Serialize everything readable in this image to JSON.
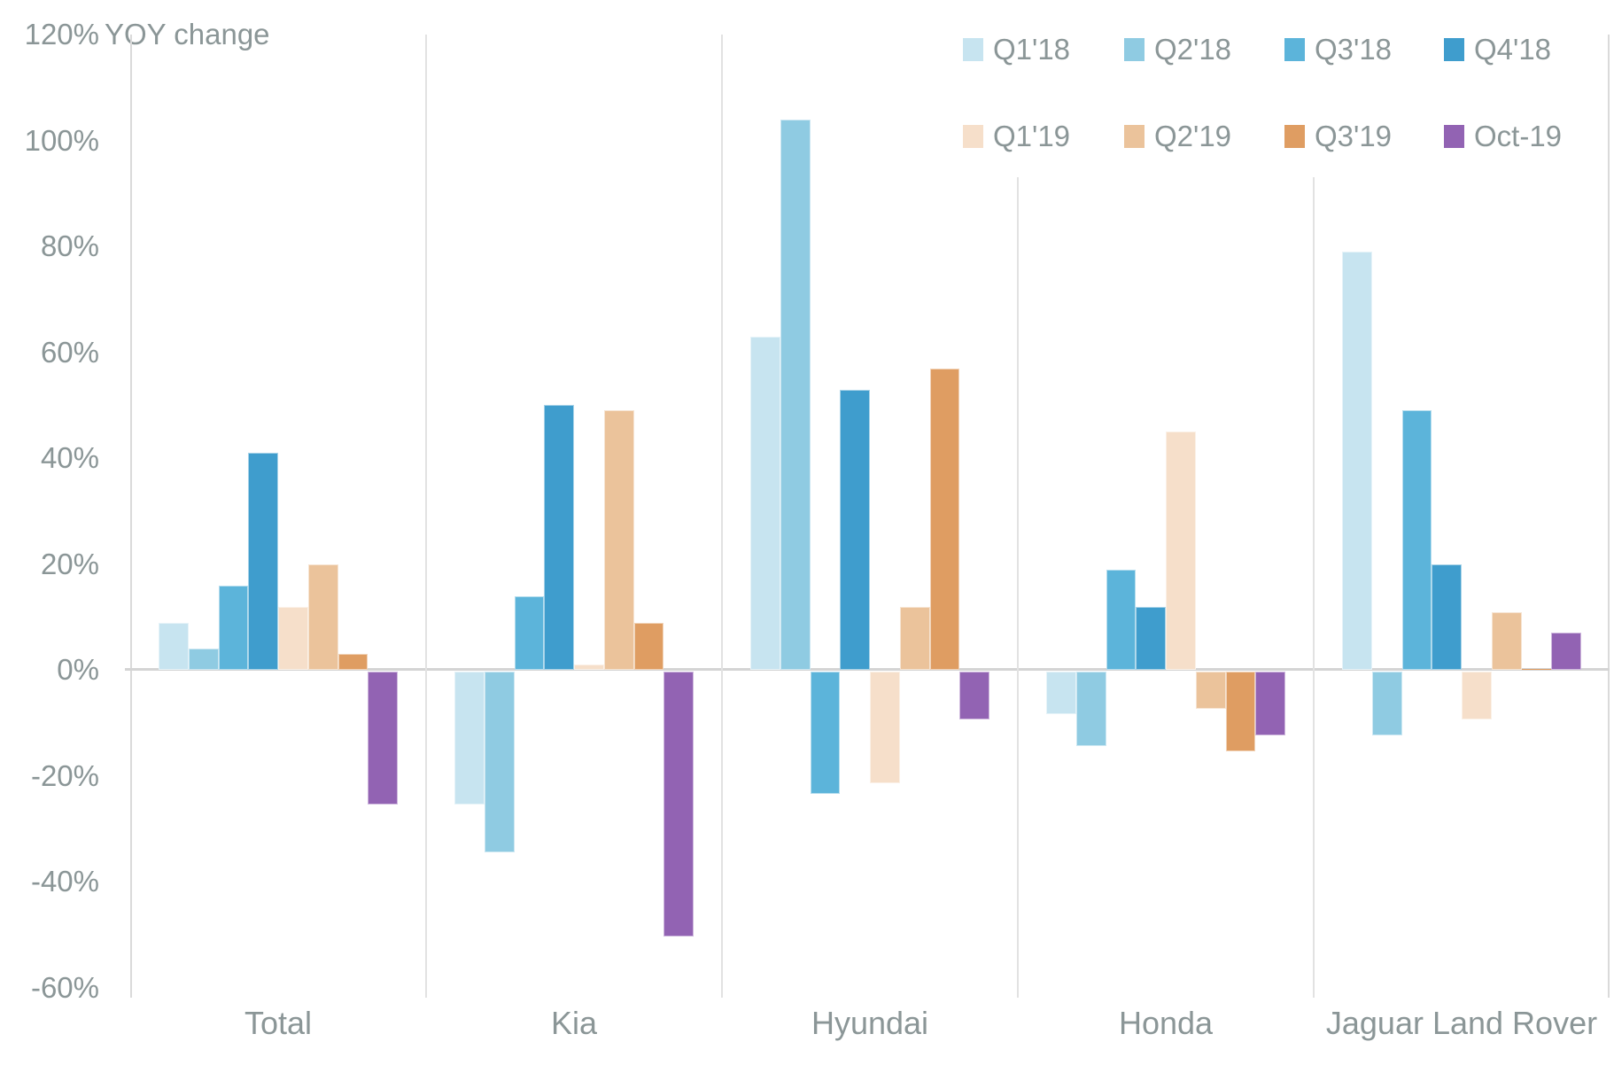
{
  "chart_data": {
    "type": "bar",
    "title": "YOY change",
    "unit": "%",
    "ylim": [
      -60,
      120
    ],
    "zero_baseline": true,
    "grid": "vertical category separators only",
    "legend_position": "top-right, two rows",
    "categories": [
      "Total",
      "Kia",
      "Hyundai",
      "Honda",
      "Jaguar Land Rover"
    ],
    "y_ticks": [
      {
        "value": 120,
        "label": "120%"
      },
      {
        "value": 100,
        "label": "100%"
      },
      {
        "value": 80,
        "label": "80%"
      },
      {
        "value": 60,
        "label": "60%"
      },
      {
        "value": 40,
        "label": "40%"
      },
      {
        "value": 20,
        "label": "20%"
      },
      {
        "value": 0,
        "label": "0%"
      },
      {
        "value": -20,
        "label": "-20%"
      },
      {
        "value": -40,
        "label": "-40%"
      },
      {
        "value": -60,
        "label": "-60%"
      }
    ],
    "series": [
      {
        "name": "Q1'18",
        "color": "#c7e4f0",
        "values": [
          9,
          -25,
          63,
          -8,
          79
        ]
      },
      {
        "name": "Q2'18",
        "color": "#8fcbe2",
        "values": [
          4,
          -34,
          104,
          -14,
          -12
        ]
      },
      {
        "name": "Q3'18",
        "color": "#5cb4da",
        "values": [
          16,
          14,
          -23,
          19,
          49
        ]
      },
      {
        "name": "Q4'18",
        "color": "#3f9dcd",
        "values": [
          41,
          50,
          53,
          12,
          20
        ]
      },
      {
        "name": "Q1'19",
        "color": "#f6dfca",
        "values": [
          12,
          1,
          -21,
          45,
          -9
        ]
      },
      {
        "name": "Q2'19",
        "color": "#ebc39b",
        "values": [
          20,
          49,
          12,
          -7,
          11
        ]
      },
      {
        "name": "Q3'19",
        "color": "#df9d62",
        "values": [
          3,
          9,
          57,
          -15,
          0.3
        ]
      },
      {
        "name": "Oct-19",
        "color": "#9263b3",
        "values": [
          -25,
          -50,
          -9,
          -12,
          7
        ]
      }
    ]
  }
}
